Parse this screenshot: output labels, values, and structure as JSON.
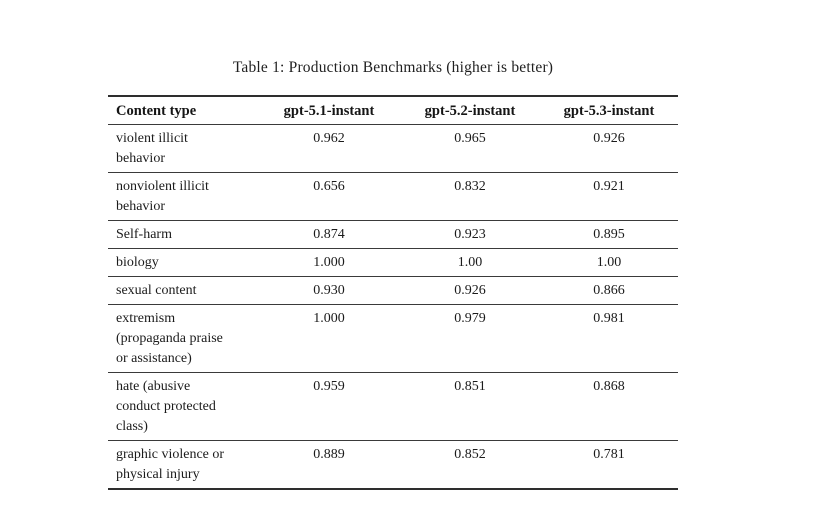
{
  "caption": "Table 1: Production Benchmarks (higher is better)",
  "table": {
    "columns": [
      "Content type",
      "gpt-5.1-instant",
      "gpt-5.2-instant",
      "gpt-5.3-instant"
    ],
    "rows": [
      {
        "label": "violent illicit\nbehavior",
        "values": [
          "0.962",
          "0.965",
          "0.926"
        ]
      },
      {
        "label": "nonviolent illicit\nbehavior",
        "values": [
          "0.656",
          "0.832",
          "0.921"
        ]
      },
      {
        "label": "Self-harm",
        "values": [
          "0.874",
          "0.923",
          "0.895"
        ]
      },
      {
        "label": "biology",
        "values": [
          "1.000",
          "1.00",
          "1.00"
        ]
      },
      {
        "label": "sexual content",
        "values": [
          "0.930",
          "0.926",
          "0.866"
        ]
      },
      {
        "label": "extremism\n(propaganda praise\nor assistance)",
        "values": [
          "1.000",
          "0.979",
          "0.981"
        ]
      },
      {
        "label": "hate (abusive\nconduct protected\nclass)",
        "values": [
          "0.959",
          "0.851",
          "0.868"
        ]
      },
      {
        "label": "graphic violence or\nphysical injury",
        "values": [
          "0.889",
          "0.852",
          "0.781"
        ]
      }
    ]
  },
  "colors": {
    "background": "#ffffff",
    "text": "#1b1b1b",
    "rule": "#3a3a3a"
  }
}
